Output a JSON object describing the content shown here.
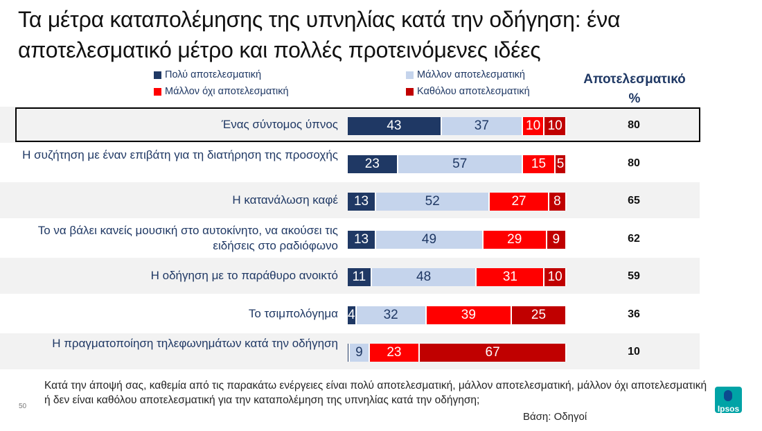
{
  "title": "Τα μέτρα καταπολέμησης της υπνηλίας κατά την οδήγηση:  ένα αποτελεσματικό μέτρο και πολλές προτεινόμενες ιδέες",
  "column_header_line1": "Αποτελεσματικό",
  "column_header_line2": "%",
  "colors": {
    "very_effective": "#1f3864",
    "rather_effective": "#c5d4ec",
    "rather_not_effective": "#ff0000",
    "not_effective": "#c00000",
    "band": "#f2f2f2"
  },
  "chart_data": {
    "type": "bar",
    "orientation": "horizontal-stacked-100",
    "series": [
      {
        "name": "Πολύ αποτελεσματική",
        "values": [
          43,
          23,
          13,
          13,
          11,
          4,
          1
        ]
      },
      {
        "name": "Μάλλον αποτελεσματική",
        "values": [
          37,
          57,
          52,
          49,
          48,
          32,
          9
        ]
      },
      {
        "name": "Μάλλον όχι αποτελεσματική",
        "values": [
          10,
          15,
          27,
          29,
          31,
          39,
          23
        ]
      },
      {
        "name": "Καθόλου αποτελεσματική",
        "values": [
          10,
          5,
          8,
          9,
          10,
          25,
          67
        ]
      }
    ],
    "categories": [
      "Ένας σύντομος ύπνος",
      "Η συζήτηση με έναν επιβάτη για τη διατήρηση της προσοχής",
      "Η κατανάλωση καφέ",
      "Το να βάλει κανείς μουσική στο αυτοκίνητο, να ακούσει τις ειδήσεις στο ραδιόφωνο",
      "Η οδήγηση με το παράθυρο ανοικτό",
      "Το τσιμπολόγημα",
      "Η πραγματοποίηση τηλεφωνημάτων κατά την οδήγηση"
    ],
    "value_labels": [
      [
        "43",
        "37",
        "10",
        "10"
      ],
      [
        "23",
        "57",
        "15",
        "5"
      ],
      [
        "13",
        "52",
        "27",
        "8"
      ],
      [
        "13",
        "49",
        "29",
        "9"
      ],
      [
        "11",
        "48",
        "31",
        "10"
      ],
      [
        "4",
        "32",
        "39",
        "25"
      ],
      [
        "",
        "9",
        "23",
        "67"
      ]
    ],
    "effective_totals": [
      "80",
      "80",
      "65",
      "62",
      "59",
      "36",
      "10"
    ],
    "highlighted_row": 0,
    "legend_position": "top"
  },
  "footnote": "Κατά την άποψή σας, καθεμία από τις παρακάτω ενέργειες είναι πολύ αποτελεσματική, μάλλον αποτελεσματική, μάλλον όχι αποτελεσματική ή δεν είναι καθόλου αποτελεσματική για την καταπολέμηση της υπνηλίας κατά την οδήγηση;",
  "base": "Βάση: Οδηγοί",
  "page_number": "50",
  "logo_text": "Ipsos"
}
